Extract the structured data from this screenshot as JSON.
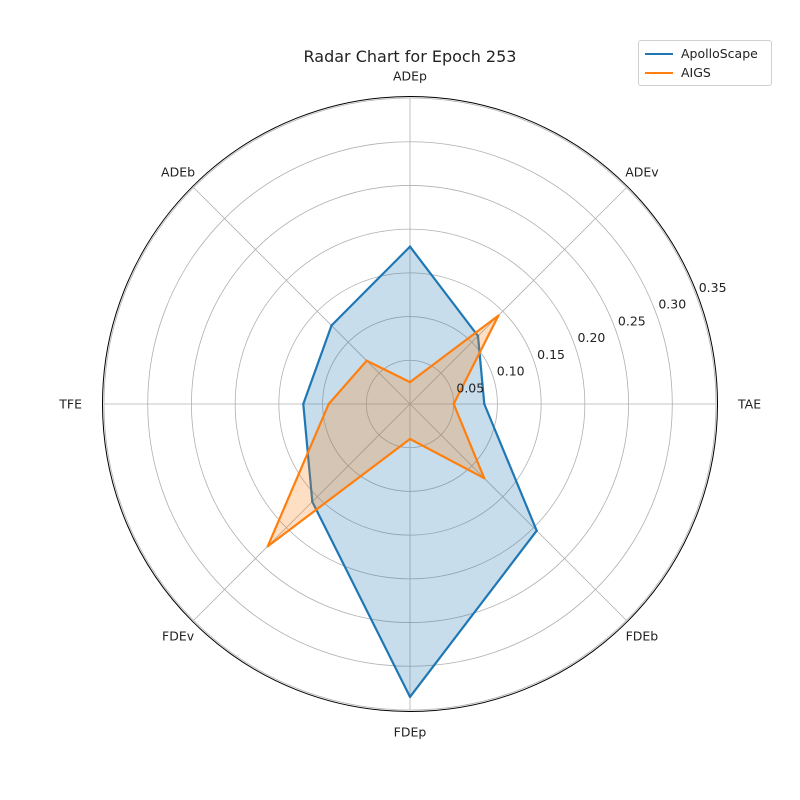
{
  "chart_data": {
    "type": "radar",
    "title": "Radar Chart for Epoch 253",
    "axes": [
      "ADEp",
      "ADEv",
      "TAE",
      "FDEb",
      "FDEp",
      "FDEv",
      "TFE",
      "ADEb"
    ],
    "rlim": [
      0,
      0.35
    ],
    "rticks": [
      "0.05",
      "0.10",
      "0.15",
      "0.20",
      "0.25",
      "0.30",
      "0.35"
    ],
    "grid": true,
    "legend_position": "top-right",
    "series": [
      {
        "name": "ApolloScape",
        "color": "#1f77b4",
        "values": [
          0.18,
          0.11,
          0.085,
          0.205,
          0.335,
          0.158,
          0.122,
          0.127
        ]
      },
      {
        "name": "AIGS",
        "color": "#ff7f0e",
        "values": [
          0.025,
          0.143,
          0.05,
          0.12,
          0.04,
          0.23,
          0.093,
          0.07
        ]
      }
    ]
  }
}
